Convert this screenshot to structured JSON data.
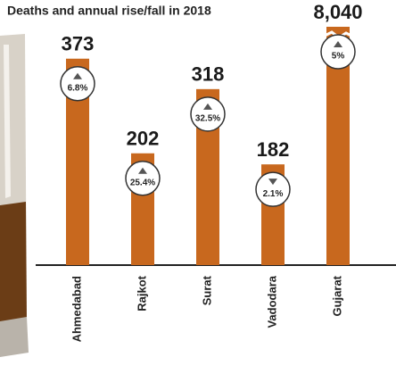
{
  "chart_data": {
    "type": "bar",
    "title": "Deaths and annual rise/fall in 2018",
    "categories": [
      "Ahmedabad",
      "Rajkot",
      "Surat",
      "Vadodara",
      "Gujarat"
    ],
    "values": [
      373,
      202,
      318,
      182,
      8040
    ],
    "value_labels": [
      "373",
      "202",
      "318",
      "182",
      "8,040"
    ],
    "changes": [
      "6.8%",
      "25.4%",
      "32.5%",
      "2.1%",
      "5%"
    ],
    "directions": [
      "up",
      "up",
      "up",
      "down",
      "up"
    ],
    "color": "#c8681e",
    "ylim": [
      0,
      400
    ]
  }
}
